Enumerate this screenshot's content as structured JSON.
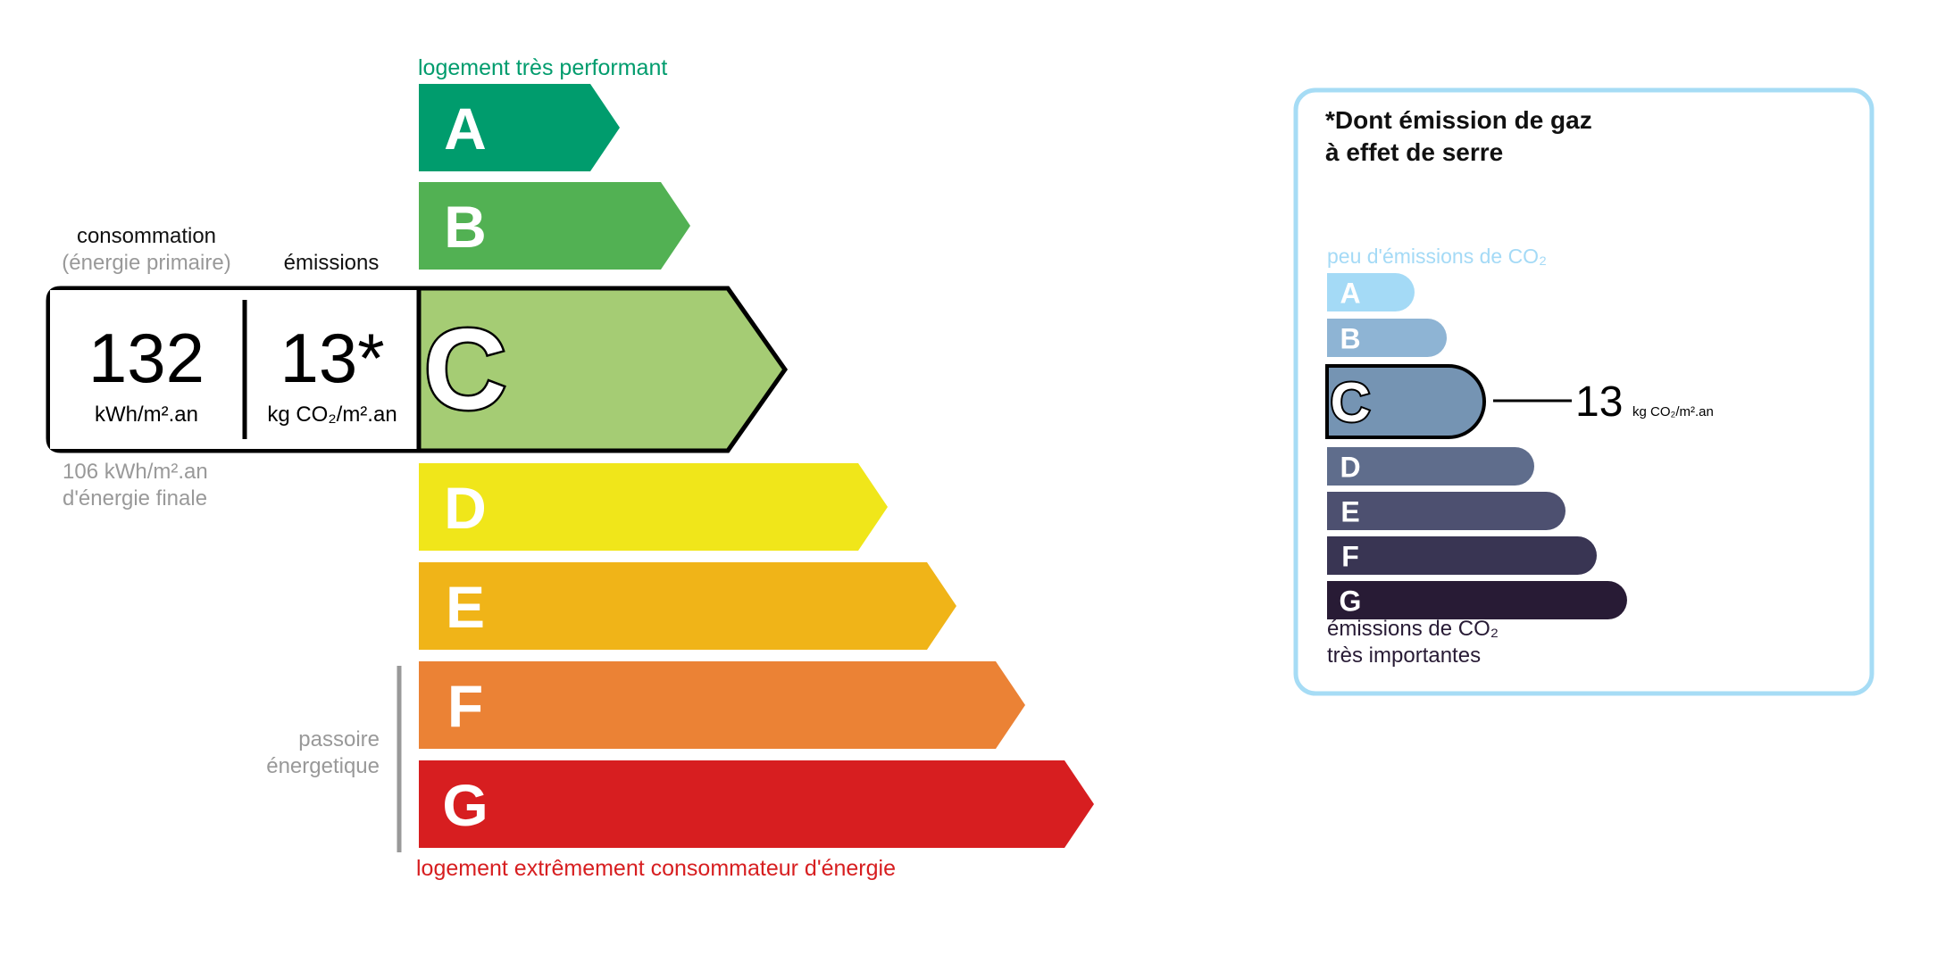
{
  "energy": {
    "top_label": "logement très performant",
    "bottom_label": "logement extrêmement consommateur d'énergie",
    "passoire_line1": "passoire",
    "passoire_line2": "énergetique",
    "classes": [
      {
        "letter": "A",
        "color": "#009c6d"
      },
      {
        "letter": "B",
        "color": "#52b153"
      },
      {
        "letter": "C",
        "color": "#a5cc74"
      },
      {
        "letter": "D",
        "color": "#f0e61a"
      },
      {
        "letter": "E",
        "color": "#f0b418"
      },
      {
        "letter": "F",
        "color": "#eb8235"
      },
      {
        "letter": "G",
        "color": "#d71e20"
      }
    ],
    "current_class": "C",
    "consumption_label": "consommation",
    "consumption_sublabel": "(énergie primaire)",
    "emissions_label": "émissions",
    "consumption_value": "132",
    "consumption_unit": "kWh/m².an",
    "emissions_value": "13*",
    "emissions_unit": "kg CO₂/m².an",
    "final_energy_line1": "106 kWh/m².an",
    "final_energy_line2": "d'énergie finale"
  },
  "ges": {
    "title_line1": "*Dont émission de gaz",
    "title_line2": "à effet de serre",
    "top_label": "peu d'émissions de CO₂",
    "bottom_label_line1": "émissions de CO₂",
    "bottom_label_line2": "très importantes",
    "classes": [
      {
        "letter": "A",
        "color": "#a4daf6"
      },
      {
        "letter": "B",
        "color": "#8eb4d4"
      },
      {
        "letter": "C",
        "color": "#7594b3"
      },
      {
        "letter": "D",
        "color": "#5f6d8c"
      },
      {
        "letter": "E",
        "color": "#4d5070"
      },
      {
        "letter": "F",
        "color": "#393553"
      },
      {
        "letter": "G",
        "color": "#281b35"
      }
    ],
    "current_class": "C",
    "value": "13",
    "unit": "kg CO₂/m².an",
    "border_color": "#a6dcf5"
  }
}
